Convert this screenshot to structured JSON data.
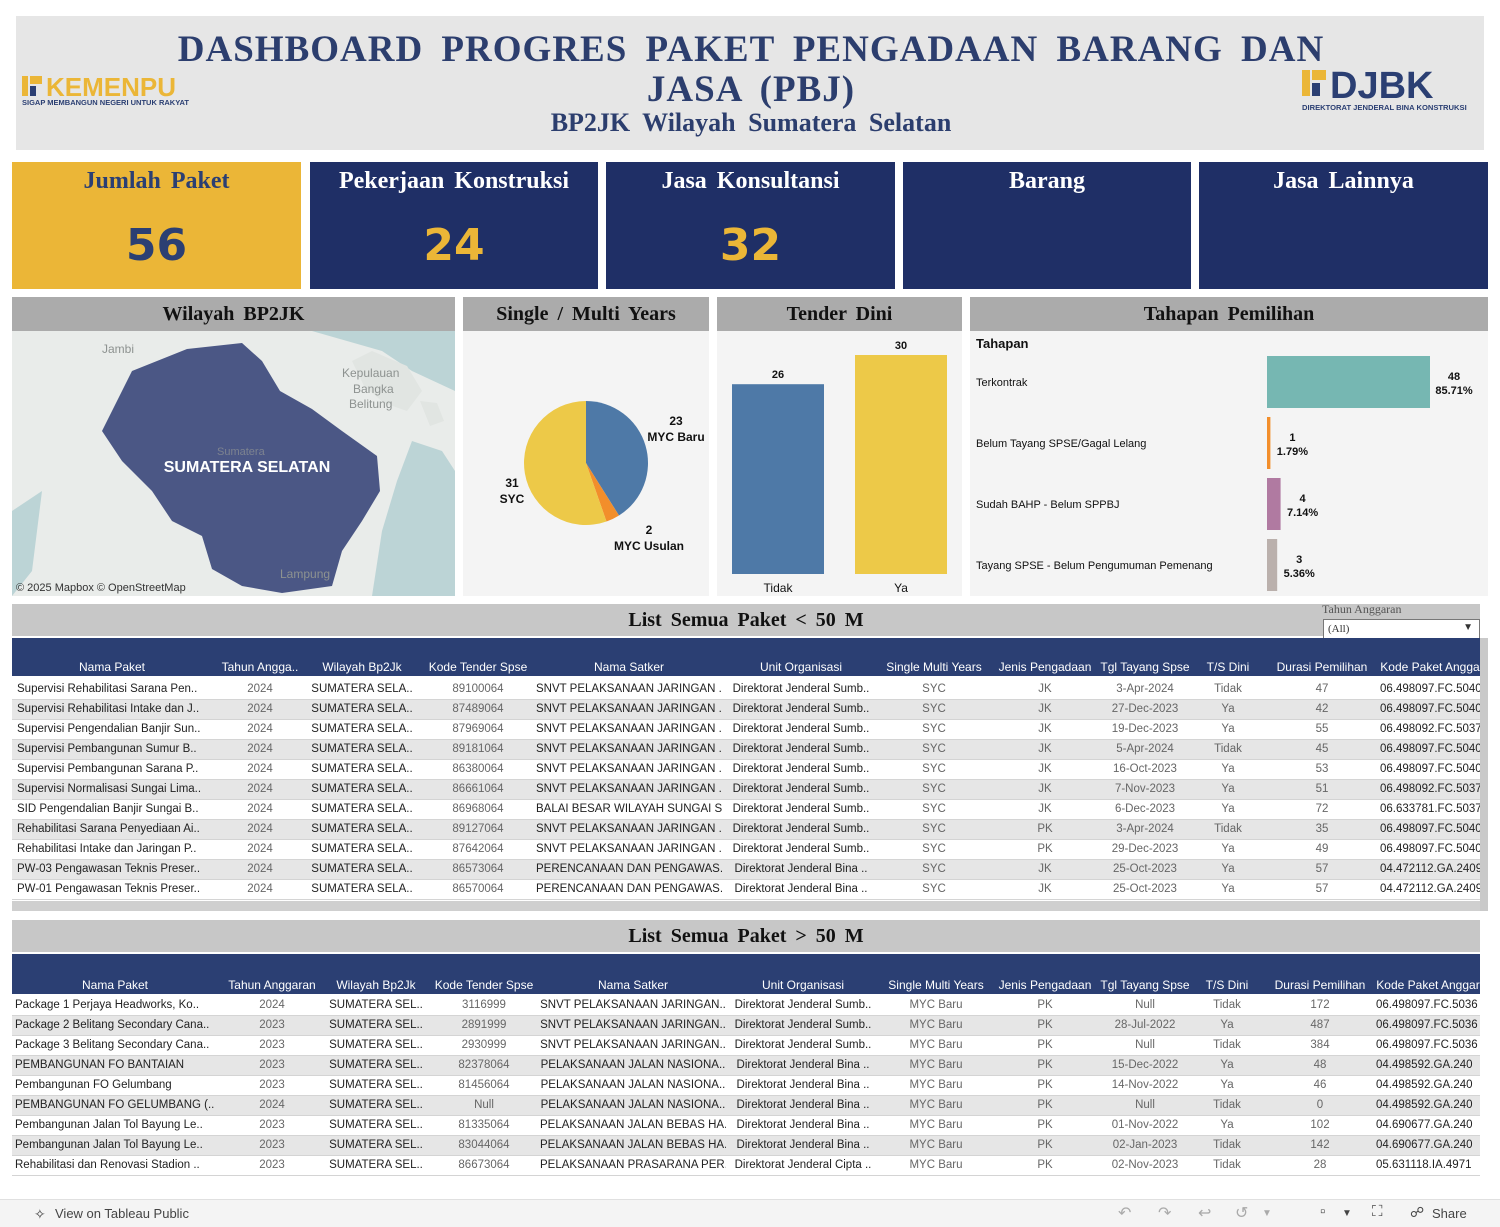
{
  "header": {
    "title_line1": "DASHBOARD PROGRES PAKET PENGADAAN BARANG DAN JASA (PBJ)",
    "title_line2": "BP2JK Wilayah Sumatera Selatan",
    "logo_left_text": "KEMENPU",
    "logo_left_tagline": "SIGAP MEMBANGUN NEGERI UNTUK RAKYAT",
    "logo_right_text": "DJBK",
    "logo_right_tagline": "DIREKTORAT JENDERAL BINA KONSTRUKSI"
  },
  "kpis": [
    {
      "label": "Jumlah Paket",
      "value": "56",
      "bg": "#ebb637",
      "fg": "#2b3f73",
      "labelcolor": "#2b3f73"
    },
    {
      "label": "Pekerjaan Konstruksi",
      "value": "24",
      "bg": "#1f2f66",
      "fg": "#ebb637",
      "labelcolor": "#ffffff"
    },
    {
      "label": "Jasa Konsultansi",
      "value": "32",
      "bg": "#1f2f66",
      "fg": "#ebb637",
      "labelcolor": "#ffffff"
    },
    {
      "label": "Barang",
      "value": "",
      "bg": "#1f2f66",
      "fg": "#ebb637",
      "labelcolor": "#ffffff"
    },
    {
      "label": "Jasa Lainnya",
      "value": "",
      "bg": "#1f2f66",
      "fg": "#ebb637",
      "labelcolor": "#ffffff"
    }
  ],
  "map": {
    "title": "Wilayah BP2JK",
    "region_label": "SUMATERA SELATAN",
    "place_jambi": "Jambi",
    "place_babel": "Kepulauan Bangka Belitung",
    "place_sumatera": "Sumatera",
    "place_lampung": "Lampung",
    "attribution": "© 2025 Mapbox  © OpenStreetMap"
  },
  "pie_panel_title": "Single / Multi Years",
  "tender_panel_title": "Tender Dini",
  "tahapan_panel_title": "Tahapan Pemilihan",
  "tahapan_column_header": "Tahapan",
  "chart_data": [
    {
      "type": "pie",
      "categories": [
        "MYC Baru",
        "MYC Usulan",
        "SYC"
      ],
      "values": [
        23,
        2,
        31
      ],
      "colors": [
        "#4e79a7",
        "#f28e2b",
        "#edc948"
      ]
    },
    {
      "type": "bar",
      "categories": [
        "Tidak",
        "Ya"
      ],
      "values": [
        26,
        30
      ],
      "colors": [
        "#4e79a7",
        "#edc948"
      ],
      "ylim": [
        0,
        30
      ]
    },
    {
      "type": "bar",
      "orientation": "horizontal",
      "categories": [
        "Terkontrak",
        "Belum Tayang SPSE/Gagal Lelang",
        "Sudah BAHP - Belum SPPBJ",
        "Tayang SPSE - Belum Pengumuman Pemenang"
      ],
      "values": [
        48,
        1,
        4,
        3
      ],
      "percent_labels": [
        "85.71%",
        "1.79%",
        "7.14%",
        "5.36%"
      ],
      "colors": [
        "#76b7b2",
        "#f28e2b",
        "#b07aa1",
        "#bab0ac"
      ]
    }
  ],
  "list_small": {
    "title": "List Semua Paket < 50 M",
    "filter_label": "Tahun Anggaran",
    "filter_value": "(All)",
    "columns": [
      "Nama Paket",
      "Tahun Angga..",
      "Wilayah Bp2Jk",
      "Kode Tender Spse",
      "Nama Satker",
      "Unit Organisasi",
      "Single Multi Years",
      "Jenis Pengadaan",
      "Tgl Tayang Spse",
      "T/S Dini",
      "Durasi Pemilihan",
      "Kode Paket Angga"
    ],
    "rows": [
      [
        "Supervisi Rehabilitasi Sarana Pen..",
        "2024",
        "SUMATERA SELA..",
        "89100064",
        "SNVT PELAKSANAAN  JARINGAN ..",
        "Direktorat Jenderal Sumb..",
        "SYC",
        "JK",
        "3-Apr-2024",
        "Tidak",
        "47",
        "06.498097.FC.5040"
      ],
      [
        "Supervisi Rehabilitasi Intake dan J..",
        "2024",
        "SUMATERA SELA..",
        "87489064",
        "SNVT PELAKSANAAN  JARINGAN ..",
        "Direktorat Jenderal Sumb..",
        "SYC",
        "JK",
        "27-Dec-2023",
        "Ya",
        "42",
        "06.498097.FC.5040"
      ],
      [
        "Supervisi Pengendalian Banjir Sun..",
        "2024",
        "SUMATERA SELA..",
        "87969064",
        "SNVT PELAKSANAAN  JARINGAN ..",
        "Direktorat Jenderal Sumb..",
        "SYC",
        "JK",
        "19-Dec-2023",
        "Ya",
        "55",
        "06.498092.FC.5037"
      ],
      [
        "Supervisi Pembangunan Sumur B..",
        "2024",
        "SUMATERA SELA..",
        "89181064",
        "SNVT PELAKSANAAN  JARINGAN ..",
        "Direktorat Jenderal Sumb..",
        "SYC",
        "JK",
        "5-Apr-2024",
        "Tidak",
        "45",
        "06.498097.FC.5040"
      ],
      [
        "Supervisi Pembangunan Sarana P..",
        "2024",
        "SUMATERA SELA..",
        "86380064",
        "SNVT PELAKSANAAN  JARINGAN ..",
        "Direktorat Jenderal Sumb..",
        "SYC",
        "JK",
        "16-Oct-2023",
        "Ya",
        "53",
        "06.498097.FC.5040"
      ],
      [
        "Supervisi Normalisasi Sungai Lima..",
        "2024",
        "SUMATERA SELA..",
        "86661064",
        "SNVT PELAKSANAAN  JARINGAN ..",
        "Direktorat Jenderal Sumb..",
        "SYC",
        "JK",
        "7-Nov-2023",
        "Ya",
        "51",
        "06.498092.FC.5037"
      ],
      [
        "SID Pengendalian Banjir Sungai B..",
        "2024",
        "SUMATERA SELA..",
        "86968064",
        "BALAI BESAR WILAYAH SUNGAI S..",
        "Direktorat Jenderal Sumb..",
        "SYC",
        "JK",
        "6-Dec-2023",
        "Ya",
        "72",
        "06.633781.FC.5037"
      ],
      [
        "Rehabilitasi Sarana Penyediaan Ai..",
        "2024",
        "SUMATERA SELA..",
        "89127064",
        "SNVT PELAKSANAAN  JARINGAN ..",
        "Direktorat Jenderal Sumb..",
        "SYC",
        "PK",
        "3-Apr-2024",
        "Tidak",
        "35",
        "06.498097.FC.5040"
      ],
      [
        "Rehabilitasi Intake dan Jaringan P..",
        "2024",
        "SUMATERA SELA..",
        "87642064",
        "SNVT PELAKSANAAN  JARINGAN ..",
        "Direktorat Jenderal Sumb..",
        "SYC",
        "PK",
        "29-Dec-2023",
        "Ya",
        "49",
        "06.498097.FC.5040"
      ],
      [
        "PW-03 Pengawasan Teknis Preser..",
        "2024",
        "SUMATERA SELA..",
        "86573064",
        "PERENCANAAN DAN PENGAWAS..",
        "Direktorat Jenderal Bina ..",
        "SYC",
        "JK",
        "25-Oct-2023",
        "Ya",
        "57",
        "04.472112.GA.2409"
      ],
      [
        "PW-01 Pengawasan Teknis Preser..",
        "2024",
        "SUMATERA SELA..",
        "86570064",
        "PERENCANAAN DAN PENGAWAS..",
        "Direktorat Jenderal Bina ..",
        "SYC",
        "JK",
        "25-Oct-2023",
        "Ya",
        "57",
        "04.472112.GA.2409"
      ]
    ]
  },
  "list_large": {
    "title": "List Semua Paket > 50 M",
    "columns": [
      "Nama Paket",
      "Tahun Anggaran",
      "Wilayah Bp2Jk",
      "Kode Tender Spse",
      "Nama Satker",
      "Unit Organisasi",
      "Single Multi Years",
      "Jenis Pengadaan",
      "Tgl Tayang Spse",
      "T/S Dini",
      "Durasi Pemilihan",
      "Kode Paket Anggar"
    ],
    "rows": [
      [
        "Package 1 Perjaya Headworks, Ko..",
        "2024",
        "SUMATERA SEL..",
        "3116999",
        "SNVT PELAKSANAAN  JARINGAN..",
        "Direktorat Jenderal Sumb..",
        "MYC Baru",
        "PK",
        "Null",
        "Tidak",
        "172",
        "06.498097.FC.5036"
      ],
      [
        "Package 2 Belitang Secondary Cana..",
        "2023",
        "SUMATERA SEL..",
        "2891999",
        "SNVT PELAKSANAAN  JARINGAN..",
        "Direktorat Jenderal Sumb..",
        "MYC Baru",
        "PK",
        "28-Jul-2022",
        "Ya",
        "487",
        "06.498097.FC.5036"
      ],
      [
        "Package 3 Belitang Secondary Cana..",
        "2023",
        "SUMATERA SEL..",
        "2930999",
        "SNVT PELAKSANAAN  JARINGAN..",
        "Direktorat Jenderal Sumb..",
        "MYC Baru",
        "PK",
        "Null",
        "Tidak",
        "384",
        "06.498097.FC.5036"
      ],
      [
        "PEMBANGUNAN FO BANTAIAN",
        "2023",
        "SUMATERA SEL..",
        "82378064",
        "PELAKSANAAN JALAN NASIONA..",
        "Direktorat Jenderal Bina ..",
        "MYC Baru",
        "PK",
        "15-Dec-2022",
        "Ya",
        "48",
        "04.498592.GA.240"
      ],
      [
        "Pembangunan FO Gelumbang",
        "2023",
        "SUMATERA SEL..",
        "81456064",
        "PELAKSANAAN JALAN NASIONA..",
        "Direktorat Jenderal Bina ..",
        "MYC Baru",
        "PK",
        "14-Nov-2022",
        "Ya",
        "46",
        "04.498592.GA.240"
      ],
      [
        "PEMBANGUNAN FO GELUMBANG (..",
        "2024",
        "SUMATERA SEL..",
        "Null",
        "PELAKSANAAN JALAN NASIONA..",
        "Direktorat Jenderal Bina ..",
        "MYC Baru",
        "PK",
        "Null",
        "Tidak",
        "0",
        "04.498592.GA.240"
      ],
      [
        "Pembangunan Jalan Tol Bayung Le..",
        "2023",
        "SUMATERA SEL..",
        "81335064",
        "PELAKSANAAN JALAN BEBAS HA..",
        "Direktorat Jenderal Bina ..",
        "MYC Baru",
        "PK",
        "01-Nov-2022",
        "Ya",
        "102",
        "04.690677.GA.240"
      ],
      [
        "Pembangunan Jalan Tol Bayung Le..",
        "2023",
        "SUMATERA SEL..",
        "83044064",
        "PELAKSANAAN JALAN BEBAS HA..",
        "Direktorat Jenderal Bina ..",
        "MYC Baru",
        "PK",
        "02-Jan-2023",
        "Tidak",
        "142",
        "04.690677.GA.240"
      ],
      [
        "Rehabilitasi dan Renovasi Stadion ..",
        "2023",
        "SUMATERA SEL..",
        "86673064",
        "PELAKSANAAN PRASARANA PER..",
        "Direktorat Jenderal Cipta ..",
        "MYC Baru",
        "PK",
        "02-Nov-2023",
        "Tidak",
        "28",
        "05.631118.IA.4971"
      ]
    ]
  },
  "footer": {
    "view_on_tableau": "View on Tableau Public",
    "share": "Share"
  }
}
